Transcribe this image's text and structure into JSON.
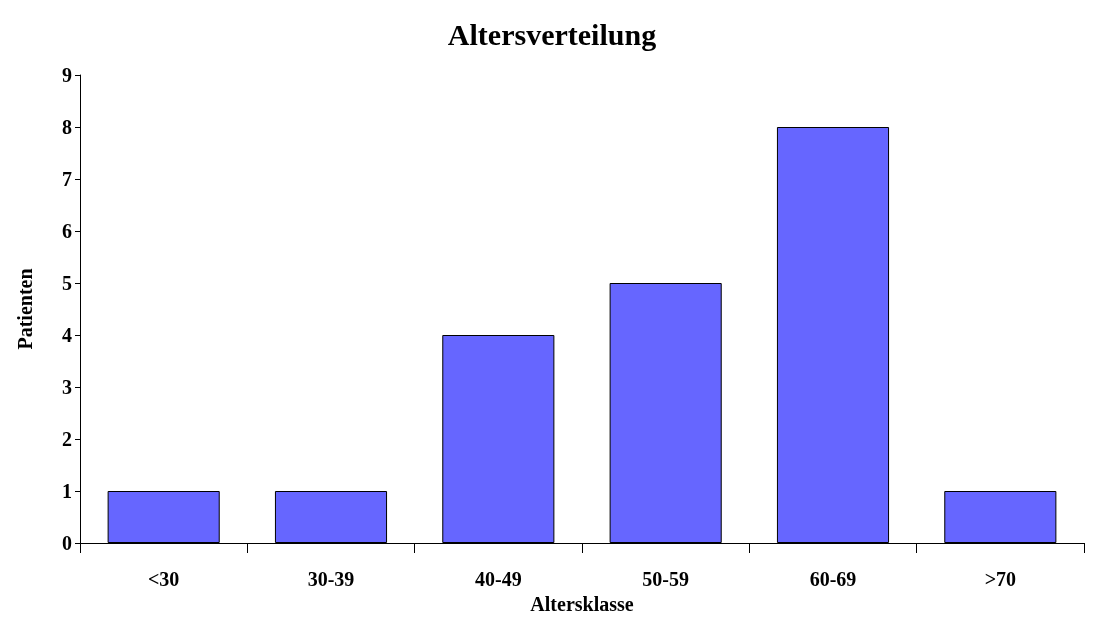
{
  "chart_data": {
    "type": "bar",
    "title": "Altersverteilung",
    "xlabel": "Altersklasse",
    "ylabel": "Patienten",
    "categories": [
      "<30",
      "30-39",
      "40-49",
      "50-59",
      "60-69",
      ">70"
    ],
    "values": [
      1,
      1,
      4,
      5,
      8,
      1
    ],
    "color": "#6666ff",
    "ylim": [
      0,
      9
    ],
    "yticks": [
      0,
      1,
      2,
      3,
      4,
      5,
      6,
      7,
      8,
      9
    ]
  }
}
